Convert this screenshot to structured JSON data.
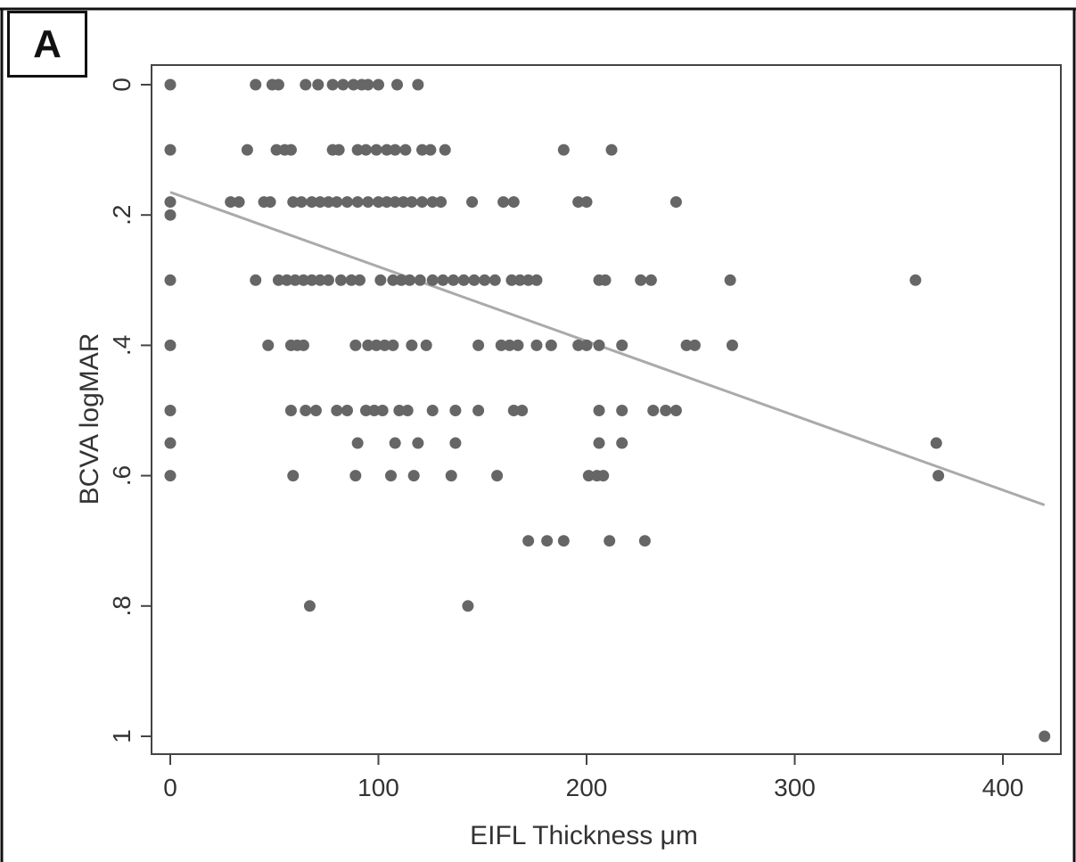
{
  "panel_label": "A",
  "chart_data": {
    "type": "scatter",
    "xlabel": "EIFL Thickness μm",
    "ylabel": "BCVA logMAR",
    "xlim": [
      -5,
      425
    ],
    "ylim": [
      1.04,
      -0.04
    ],
    "y_axis_inverted": true,
    "x_ticks": [
      0,
      100,
      200,
      300,
      400
    ],
    "x_tick_labels": [
      "0",
      "100",
      "200",
      "300",
      "400"
    ],
    "y_ticks": [
      0,
      0.2,
      0.4,
      0.6,
      0.8,
      1
    ],
    "y_tick_labels": [
      "0",
      ".2",
      ".4",
      ".6",
      ".8",
      "1"
    ],
    "grid": false,
    "legend": "none",
    "marker_color": "#666666",
    "fit_line_color": "#aaaaaa",
    "fit_line": {
      "x": [
        0,
        420
      ],
      "y": [
        0.165,
        0.645
      ]
    },
    "points": [
      [
        0,
        0
      ],
      [
        41,
        0
      ],
      [
        49,
        0
      ],
      [
        52,
        0
      ],
      [
        65,
        0
      ],
      [
        71,
        0
      ],
      [
        78,
        0
      ],
      [
        83,
        0
      ],
      [
        88,
        0
      ],
      [
        92,
        0
      ],
      [
        95,
        0
      ],
      [
        100,
        0
      ],
      [
        109,
        0
      ],
      [
        119,
        0
      ],
      [
        0,
        0.1
      ],
      [
        37,
        0.1
      ],
      [
        51,
        0.1
      ],
      [
        55,
        0.1
      ],
      [
        58,
        0.1
      ],
      [
        78,
        0.1
      ],
      [
        81,
        0.1
      ],
      [
        90,
        0.1
      ],
      [
        94,
        0.1
      ],
      [
        99,
        0.1
      ],
      [
        104,
        0.1
      ],
      [
        108,
        0.1
      ],
      [
        113,
        0.1
      ],
      [
        121,
        0.1
      ],
      [
        125,
        0.1
      ],
      [
        132,
        0.1
      ],
      [
        189,
        0.1
      ],
      [
        212,
        0.1
      ],
      [
        0,
        0.18
      ],
      [
        29,
        0.18
      ],
      [
        33,
        0.18
      ],
      [
        45,
        0.18
      ],
      [
        48,
        0.18
      ],
      [
        59,
        0.18
      ],
      [
        63,
        0.18
      ],
      [
        68,
        0.18
      ],
      [
        72,
        0.18
      ],
      [
        76,
        0.18
      ],
      [
        80,
        0.18
      ],
      [
        85,
        0.18
      ],
      [
        90,
        0.18
      ],
      [
        95,
        0.18
      ],
      [
        100,
        0.18
      ],
      [
        104,
        0.18
      ],
      [
        108,
        0.18
      ],
      [
        112,
        0.18
      ],
      [
        116,
        0.18
      ],
      [
        121,
        0.18
      ],
      [
        126,
        0.18
      ],
      [
        130,
        0.18
      ],
      [
        145,
        0.18
      ],
      [
        160,
        0.18
      ],
      [
        165,
        0.18
      ],
      [
        196,
        0.18
      ],
      [
        200,
        0.18
      ],
      [
        243,
        0.18
      ],
      [
        0,
        0.2
      ],
      [
        0,
        0.3
      ],
      [
        41,
        0.3
      ],
      [
        52,
        0.3
      ],
      [
        56,
        0.3
      ],
      [
        60,
        0.3
      ],
      [
        64,
        0.3
      ],
      [
        68,
        0.3
      ],
      [
        72,
        0.3
      ],
      [
        76,
        0.3
      ],
      [
        82,
        0.3
      ],
      [
        87,
        0.3
      ],
      [
        91,
        0.3
      ],
      [
        101,
        0.3
      ],
      [
        107,
        0.3
      ],
      [
        111,
        0.3
      ],
      [
        115,
        0.3
      ],
      [
        120,
        0.3
      ],
      [
        126,
        0.3
      ],
      [
        131,
        0.3
      ],
      [
        136,
        0.3
      ],
      [
        141,
        0.3
      ],
      [
        146,
        0.3
      ],
      [
        151,
        0.3
      ],
      [
        156,
        0.3
      ],
      [
        164,
        0.3
      ],
      [
        168,
        0.3
      ],
      [
        172,
        0.3
      ],
      [
        176,
        0.3
      ],
      [
        206,
        0.3
      ],
      [
        209,
        0.3
      ],
      [
        226,
        0.3
      ],
      [
        231,
        0.3
      ],
      [
        269,
        0.3
      ],
      [
        358,
        0.3
      ],
      [
        0,
        0.4
      ],
      [
        47,
        0.4
      ],
      [
        58,
        0.4
      ],
      [
        61,
        0.4
      ],
      [
        64,
        0.4
      ],
      [
        89,
        0.4
      ],
      [
        95,
        0.4
      ],
      [
        99,
        0.4
      ],
      [
        103,
        0.4
      ],
      [
        107,
        0.4
      ],
      [
        116,
        0.4
      ],
      [
        123,
        0.4
      ],
      [
        148,
        0.4
      ],
      [
        159,
        0.4
      ],
      [
        163,
        0.4
      ],
      [
        167,
        0.4
      ],
      [
        176,
        0.4
      ],
      [
        183,
        0.4
      ],
      [
        196,
        0.4
      ],
      [
        200,
        0.4
      ],
      [
        206,
        0.4
      ],
      [
        217,
        0.4
      ],
      [
        248,
        0.4
      ],
      [
        252,
        0.4
      ],
      [
        270,
        0.4
      ],
      [
        0,
        0.5
      ],
      [
        58,
        0.5
      ],
      [
        65,
        0.5
      ],
      [
        70,
        0.5
      ],
      [
        80,
        0.5
      ],
      [
        85,
        0.5
      ],
      [
        94,
        0.5
      ],
      [
        98,
        0.5
      ],
      [
        102,
        0.5
      ],
      [
        110,
        0.5
      ],
      [
        114,
        0.5
      ],
      [
        126,
        0.5
      ],
      [
        137,
        0.5
      ],
      [
        148,
        0.5
      ],
      [
        165,
        0.5
      ],
      [
        169,
        0.5
      ],
      [
        206,
        0.5
      ],
      [
        217,
        0.5
      ],
      [
        232,
        0.5
      ],
      [
        238,
        0.5
      ],
      [
        243,
        0.5
      ],
      [
        0,
        0.55
      ],
      [
        90,
        0.55
      ],
      [
        108,
        0.55
      ],
      [
        119,
        0.55
      ],
      [
        137,
        0.55
      ],
      [
        206,
        0.55
      ],
      [
        217,
        0.55
      ],
      [
        368,
        0.55
      ],
      [
        0,
        0.6
      ],
      [
        59,
        0.6
      ],
      [
        89,
        0.6
      ],
      [
        106,
        0.6
      ],
      [
        117,
        0.6
      ],
      [
        135,
        0.6
      ],
      [
        157,
        0.6
      ],
      [
        201,
        0.6
      ],
      [
        205,
        0.6
      ],
      [
        208,
        0.6
      ],
      [
        369,
        0.6
      ],
      [
        172,
        0.7
      ],
      [
        181,
        0.7
      ],
      [
        189,
        0.7
      ],
      [
        211,
        0.7
      ],
      [
        228,
        0.7
      ],
      [
        67,
        0.8
      ],
      [
        143,
        0.8
      ],
      [
        420,
        1.0
      ]
    ]
  }
}
